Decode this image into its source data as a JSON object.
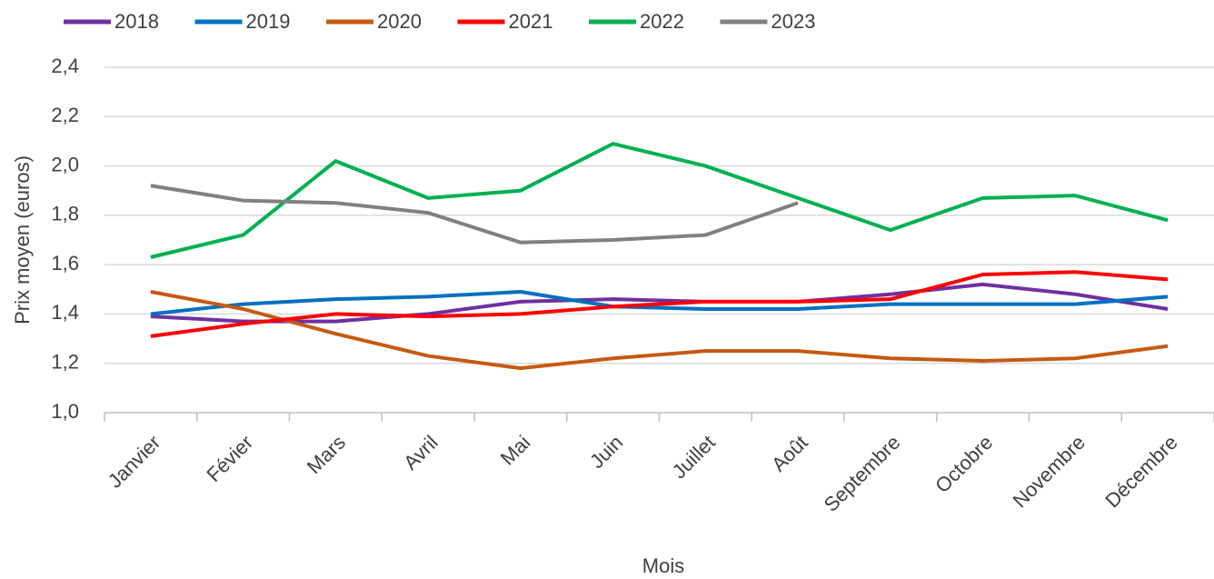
{
  "chart_data": {
    "type": "line",
    "x_label": "Mois",
    "y_label": "Prix moyen (euros)",
    "categories": [
      "Janvier",
      "Févier",
      "Mars",
      "Avril",
      "Mai",
      "Juin",
      "Juillet",
      "Août",
      "Septembre",
      "Octobre",
      "Novembre",
      "Décembre"
    ],
    "series": [
      {
        "name": "2018",
        "color": "#7030a0",
        "values": [
          1.39,
          1.37,
          1.37,
          1.4,
          1.45,
          1.46,
          1.45,
          1.45,
          1.48,
          1.52,
          1.48,
          1.42
        ]
      },
      {
        "name": "2019",
        "color": "#0070c0",
        "values": [
          1.4,
          1.44,
          1.46,
          1.47,
          1.49,
          1.43,
          1.42,
          1.42,
          1.44,
          1.44,
          1.44,
          1.47
        ]
      },
      {
        "name": "2020",
        "color": "#c55a11",
        "values": [
          1.49,
          1.42,
          1.32,
          1.23,
          1.18,
          1.22,
          1.25,
          1.25,
          1.22,
          1.21,
          1.22,
          1.27
        ]
      },
      {
        "name": "2021",
        "color": "#ff0000",
        "values": [
          1.31,
          1.36,
          1.4,
          1.39,
          1.4,
          1.43,
          1.45,
          1.45,
          1.46,
          1.56,
          1.57,
          1.54
        ]
      },
      {
        "name": "2022",
        "color": "#00b050",
        "values": [
          1.63,
          1.72,
          2.02,
          1.87,
          1.9,
          2.09,
          2.0,
          1.87,
          1.74,
          1.87,
          1.88,
          1.78
        ]
      },
      {
        "name": "2023",
        "color": "#808080",
        "values": [
          1.92,
          1.86,
          1.85,
          1.81,
          1.69,
          1.7,
          1.72,
          1.85,
          null,
          null,
          null,
          null
        ]
      }
    ],
    "ylim": [
      1.0,
      2.4
    ],
    "yticks": [
      {
        "value": 1.0,
        "label": "1,0"
      },
      {
        "value": 1.2,
        "label": "1,2"
      },
      {
        "value": 1.4,
        "label": "1,4"
      },
      {
        "value": 1.6,
        "label": "1,6"
      },
      {
        "value": 1.8,
        "label": "1,8"
      },
      {
        "value": 2.0,
        "label": "2,0"
      },
      {
        "value": 2.2,
        "label": "2,2"
      },
      {
        "value": 2.4,
        "label": "2,4"
      }
    ],
    "grid": true,
    "legend": "top"
  }
}
